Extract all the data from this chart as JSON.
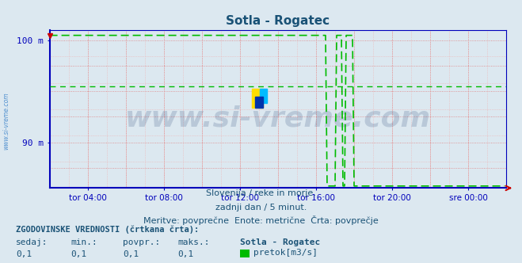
{
  "title": "Sotla - Rogatec",
  "title_color": "#1a5276",
  "bg_color": "#dce8f0",
  "plot_bg_color": "#dce8f0",
  "axis_color": "#0000bb",
  "line_color": "#00bb00",
  "line_width": 1.2,
  "dashed_avg_color": "#00bb00",
  "dashed_avg_value": 95.5,
  "grid_major_color": "#e08080",
  "grid_minor_color": "#f0b0b0",
  "ylim": [
    85.5,
    101.0
  ],
  "ytick_vals": [
    90.0,
    100.0
  ],
  "ytick_labels": [
    "90 m",
    "100 m"
  ],
  "n_points": 288,
  "max_val": 100.5,
  "base_val": 85.7,
  "spike_data": [
    {
      "start": 167,
      "end": 175,
      "peak": 100.5
    },
    {
      "start": 181,
      "end": 185,
      "peak": 100.5
    },
    {
      "start": 187,
      "end": 192,
      "peak": 100.5
    }
  ],
  "drop_start": 168,
  "xtick_positions": [
    24,
    72,
    120,
    168,
    216,
    264
  ],
  "xtick_labels": [
    "tor 04:00",
    "tor 08:00",
    "tor 12:00",
    "tor 16:00",
    "tor 20:00",
    "sre 00:00"
  ],
  "watermark": "www.si-vreme.com",
  "watermark_color": "#1a3a6b",
  "watermark_alpha": 0.18,
  "watermark_fontsize": 26,
  "logo_colors": [
    "#ffdd00",
    "#00aaff",
    "#0033aa"
  ],
  "footer1": "Slovenija / reke in morje.",
  "footer2": "zadnji dan / 5 minut.",
  "footer3": "Meritve: povprečne  Enote: metrične  Črta: povprečje",
  "footer_color": "#1a5276",
  "footer_fontsize": 8,
  "hist_label": "ZGODOVINSKE VREDNOSTI (črtkana črta):",
  "col_headers": [
    "sedaj:",
    "min.:",
    "povpr.:",
    "maks.:",
    "Sotla - Rogatec"
  ],
  "col_values": [
    "0,1",
    "0,1",
    "0,1",
    "0,1"
  ],
  "legend_label": "pretok[m3/s]",
  "legend_color": "#00bb00",
  "sidewater_text": "www.si-vreme.com",
  "sidewater_color": "#4488cc"
}
